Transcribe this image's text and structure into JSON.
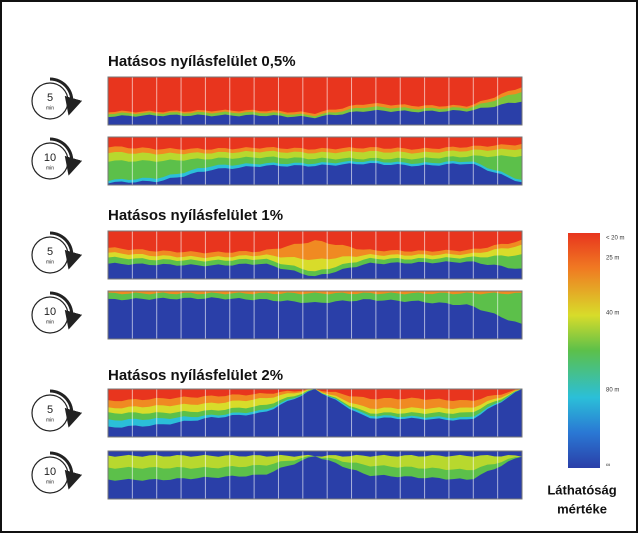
{
  "sections": [
    {
      "title": "Hatásos nyílásfelület 0,5%",
      "rows": [
        {
          "time": "5",
          "unit": "min"
        },
        {
          "time": "10",
          "unit": "min"
        }
      ]
    },
    {
      "title": "Hatásos nyílásfelület 1%",
      "rows": [
        {
          "time": "5",
          "unit": "min"
        },
        {
          "time": "10",
          "unit": "min"
        }
      ]
    },
    {
      "title": "Hatásos nyílásfelület 2%",
      "rows": [
        {
          "time": "5",
          "unit": "min"
        },
        {
          "time": "10",
          "unit": "min"
        }
      ]
    }
  ],
  "legend": {
    "title_lines": [
      "Láthatóság",
      "mértéke"
    ],
    "scale_labels": [
      "< 20 m",
      "25 m",
      "40 m",
      "80 m",
      "∞"
    ]
  }
}
